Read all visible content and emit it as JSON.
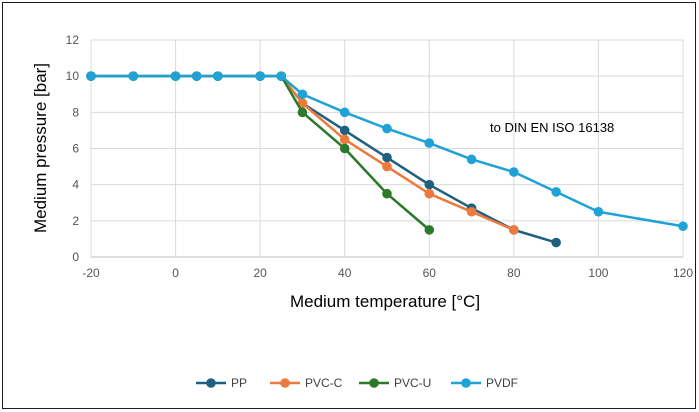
{
  "chart_data": {
    "type": "line",
    "xlabel": "Medium temperature [°C]",
    "ylabel": "Medium pressure [bar]",
    "xlim": [
      -20,
      120
    ],
    "ylim": [
      0,
      12
    ],
    "xticks": [
      -20,
      0,
      20,
      40,
      60,
      80,
      100,
      120
    ],
    "yticks": [
      0,
      2,
      4,
      6,
      8,
      10,
      12
    ],
    "grid": true,
    "legend_position": "bottom",
    "annotation": "to DIN EN ISO 16138",
    "series": [
      {
        "name": "PP",
        "color": "#1f5f7f",
        "x": [
          -20,
          -10,
          0,
          5,
          10,
          20,
          25,
          30,
          40,
          50,
          60,
          70,
          80,
          90
        ],
        "y": [
          10,
          10,
          10,
          10,
          10,
          10,
          10,
          8.5,
          7,
          5.5,
          4,
          2.7,
          1.5,
          0.8
        ]
      },
      {
        "name": "PVC-C",
        "color": "#ec7a3c",
        "x": [
          -20,
          -10,
          0,
          5,
          10,
          20,
          25,
          30,
          40,
          50,
          60,
          70,
          80
        ],
        "y": [
          10,
          10,
          10,
          10,
          10,
          10,
          10,
          8.5,
          6.5,
          5,
          3.5,
          2.5,
          1.5
        ]
      },
      {
        "name": "PVC-U",
        "color": "#2a7a2a",
        "x": [
          -20,
          -10,
          0,
          5,
          10,
          20,
          25,
          30,
          40,
          50,
          60
        ],
        "y": [
          10,
          10,
          10,
          10,
          10,
          10,
          10,
          8,
          6,
          3.5,
          1.5
        ]
      },
      {
        "name": "PVDF",
        "color": "#1fa2d6",
        "x": [
          -20,
          -10,
          0,
          5,
          10,
          20,
          25,
          30,
          40,
          50,
          60,
          70,
          80,
          90,
          100,
          120
        ],
        "y": [
          10,
          10,
          10,
          10,
          10,
          10,
          10,
          9,
          8,
          7.1,
          6.3,
          5.4,
          4.7,
          3.6,
          2.5,
          1.7
        ]
      }
    ]
  }
}
